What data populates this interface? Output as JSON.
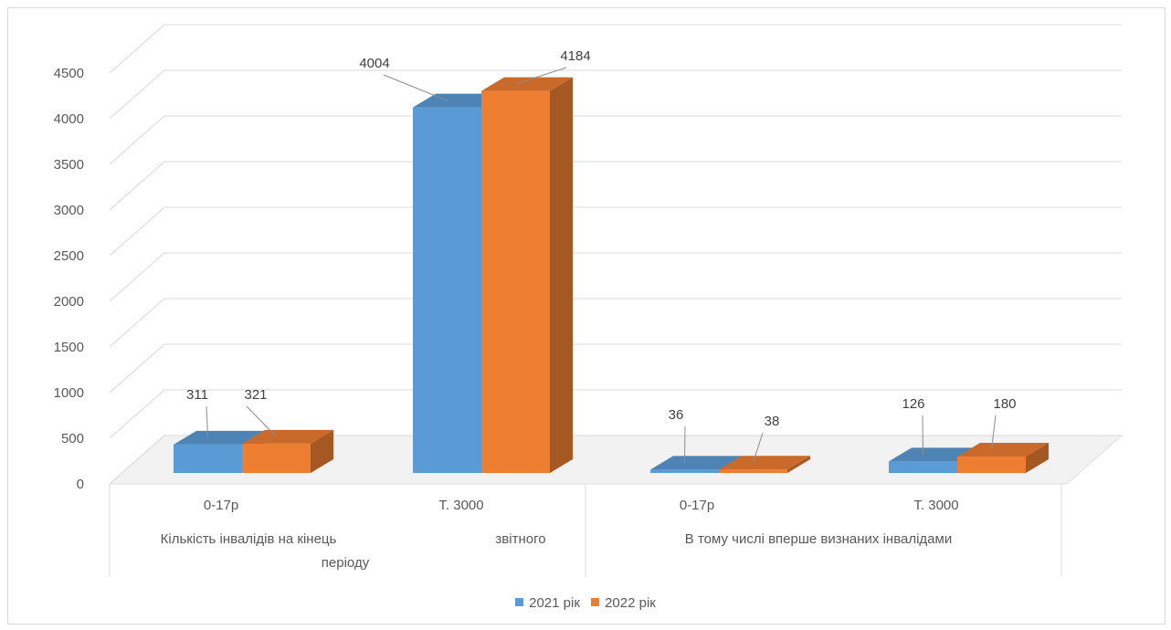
{
  "chart_data": {
    "type": "bar",
    "style": "3d-clustered-column",
    "categories": [
      "0-17р",
      "Т. 3000",
      "0-17р",
      "Т. 3000"
    ],
    "groups": [
      {
        "label": "Кількість інвалідів на кінець звітного періоду",
        "label_parts": [
          "Кількість інвалідів на кінець",
          "періоду",
          "звітного"
        ],
        "categories": [
          0,
          1
        ]
      },
      {
        "label": "В тому числі вперше визнаних інвалідами",
        "categories": [
          2,
          3
        ]
      }
    ],
    "series": [
      {
        "name": "2021 рік",
        "values": [
          311,
          4004,
          36,
          126
        ]
      },
      {
        "name": "2022 рік",
        "values": [
          321,
          4184,
          38,
          180
        ]
      }
    ],
    "ylim": [
      0,
      4500
    ],
    "yticks": [
      "0",
      "500",
      "1000",
      "1500",
      "2000",
      "2500",
      "3000",
      "3500",
      "4000",
      "4500"
    ],
    "grid": true,
    "legend_position": "bottom"
  },
  "colors": {
    "series_2021": "#5b9bd5",
    "series_2022": "#ed7d31",
    "gridline": "#d9d9d9",
    "text": "#595959"
  }
}
